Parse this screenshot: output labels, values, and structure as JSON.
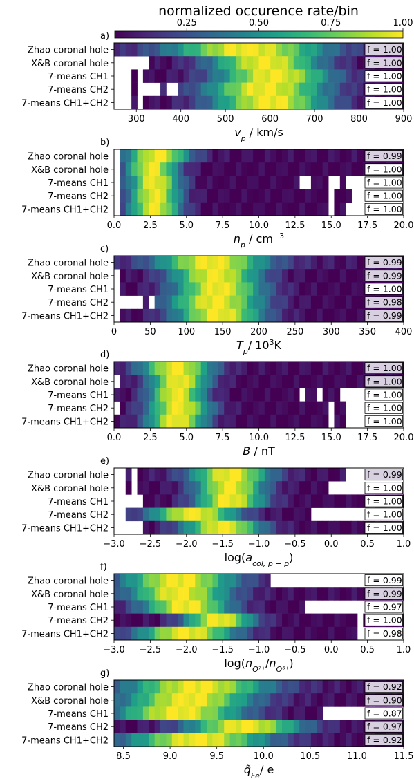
{
  "colorbar": {
    "title": "normalized occurence rate/bin",
    "ticks": [
      "0.25",
      "0.50",
      "0.75",
      "1.00"
    ],
    "colors": [
      "#440154",
      "#482878",
      "#3e4a89",
      "#31688e",
      "#26828e",
      "#1f9e89",
      "#35b779",
      "#6ece58",
      "#b5de2b",
      "#fde725"
    ]
  },
  "f_box_color": "#d8cfe0",
  "chart_data": [
    {
      "type": "heatmap",
      "panel_label": "a)",
      "xlabel_parts": [
        [
          "v",
          "italic"
        ],
        [
          "p",
          "sub"
        ],
        [
          " / km/s",
          "normal"
        ]
      ],
      "xlim": [
        250,
        900
      ],
      "xticks": [
        "300",
        "400",
        "500",
        "600",
        "700",
        "800",
        "900"
      ],
      "xtick_values": [
        300,
        400,
        500,
        600,
        700,
        800,
        900
      ],
      "rows": [
        {
          "label": "Zhao coronal hole",
          "f": "f = 1.00",
          "f_shaded": true,
          "peak": 550,
          "width": 130,
          "base": 0.02,
          "gaps": []
        },
        {
          "label": "X&B coronal hole",
          "f": "f = 1.00",
          "f_shaded": true,
          "peak": 590,
          "width": 90,
          "base": 0.0,
          "gaps": [
            [
              250,
              330
            ]
          ]
        },
        {
          "label": "7-means CH1",
          "f": "f = 1.00",
          "f_shaded": false,
          "peak": 610,
          "width": 95,
          "base": 0.0,
          "gaps": [
            [
              250,
              285
            ],
            [
              300,
              315
            ]
          ]
        },
        {
          "label": "7-means CH2",
          "f": "f = 1.00",
          "f_shaded": false,
          "peak": 590,
          "width": 100,
          "base": 0.0,
          "gaps": [
            [
              250,
              285
            ],
            [
              300,
              355
            ],
            [
              365,
              390
            ]
          ]
        },
        {
          "label": "7-means CH1+CH2",
          "f": "f = 1.00",
          "f_shaded": false,
          "peak": 600,
          "width": 95,
          "base": 0.0,
          "gaps": [
            [
              250,
              285
            ],
            [
              300,
              315
            ]
          ]
        }
      ]
    },
    {
      "type": "heatmap",
      "panel_label": "b)",
      "xlabel_parts": [
        [
          "n",
          "italic"
        ],
        [
          "p",
          "sub"
        ],
        [
          " / cm",
          "normal"
        ],
        [
          "−3",
          "sup"
        ]
      ],
      "xlim": [
        0,
        20
      ],
      "xticks": [
        "0.0",
        "2.5",
        "5.0",
        "7.5",
        "10.0",
        "12.5",
        "15.0",
        "17.5",
        "20.0"
      ],
      "xtick_values": [
        0,
        2.5,
        5,
        7.5,
        10,
        12.5,
        15,
        17.5,
        20
      ],
      "rows": [
        {
          "label": "Zhao coronal hole",
          "f": "f = 0.99",
          "f_shaded": true,
          "peak": 3.0,
          "width": 1.6,
          "base": 0.02,
          "gaps": [
            [
              0,
              0.5
            ]
          ]
        },
        {
          "label": "X&B coronal hole",
          "f": "f = 1.00",
          "f_shaded": false,
          "peak": 2.6,
          "width": 1.3,
          "base": 0.0,
          "gaps": [
            [
              0,
              0.5
            ]
          ]
        },
        {
          "label": "7-means CH1",
          "f": "f = 1.00",
          "f_shaded": false,
          "peak": 2.8,
          "width": 1.3,
          "base": 0.0,
          "gaps": [
            [
              0,
              0.5
            ],
            [
              13.0,
              13.8
            ],
            [
              14.8,
              15.6
            ],
            [
              16.0,
              20
            ]
          ]
        },
        {
          "label": "7-means CH2",
          "f": "f = 1.00",
          "f_shaded": false,
          "peak": 2.8,
          "width": 1.3,
          "base": 0.0,
          "gaps": [
            [
              0,
              0.5
            ],
            [
              14.8,
              15.3
            ],
            [
              16.3,
              20
            ]
          ]
        },
        {
          "label": "7-means CH1+CH2",
          "f": "f = 1.00",
          "f_shaded": false,
          "peak": 2.8,
          "width": 1.3,
          "base": 0.0,
          "gaps": [
            [
              0,
              0.5
            ],
            [
              14.8,
              15.3
            ],
            [
              16.0,
              20
            ]
          ]
        }
      ]
    },
    {
      "type": "heatmap",
      "panel_label": "c)",
      "xlabel_parts": [
        [
          "T",
          "italic"
        ],
        [
          "p",
          "sub"
        ],
        [
          "/ 10",
          "normal"
        ],
        [
          "3",
          "sup"
        ],
        [
          "K",
          "normal"
        ]
      ],
      "xlim": [
        0,
        400
      ],
      "xticks": [
        "0",
        "50",
        "100",
        "150",
        "200",
        "250",
        "300",
        "350",
        "400"
      ],
      "xtick_values": [
        0,
        50,
        100,
        150,
        200,
        250,
        300,
        350,
        400
      ],
      "rows": [
        {
          "label": "Zhao coronal hole",
          "f": "f = 0.99",
          "f_shaded": true,
          "peak": 135,
          "width": 55,
          "base": 0.05,
          "gaps": []
        },
        {
          "label": "X&B coronal hole",
          "f": "f = 0.99",
          "f_shaded": true,
          "peak": 140,
          "width": 45,
          "base": 0.0,
          "gaps": [
            [
              0,
              8
            ]
          ]
        },
        {
          "label": "7-means CH1",
          "f": "f = 1.00",
          "f_shaded": false,
          "peak": 145,
          "width": 45,
          "base": 0.0,
          "gaps": [
            [
              0,
              8
            ]
          ]
        },
        {
          "label": "7-means CH2",
          "f": "f = 0.98",
          "f_shaded": true,
          "peak": 140,
          "width": 48,
          "base": 0.0,
          "gaps": [
            [
              0,
              38
            ],
            [
              45,
              55
            ]
          ]
        },
        {
          "label": "7-means CH1+CH2",
          "f": "f = 0.99",
          "f_shaded": true,
          "peak": 145,
          "width": 45,
          "base": 0.0,
          "gaps": [
            [
              0,
              8
            ]
          ]
        }
      ]
    },
    {
      "type": "heatmap",
      "panel_label": "d)",
      "xlabel_parts": [
        [
          "B",
          "italic"
        ],
        [
          " / nT",
          "normal"
        ]
      ],
      "xlim": [
        0,
        20
      ],
      "xticks": [
        "0.0",
        "2.5",
        "5.0",
        "7.5",
        "10.0",
        "12.5",
        "15.0",
        "17.5",
        "20.0"
      ],
      "xtick_values": [
        0,
        2.5,
        5,
        7.5,
        10,
        12.5,
        15,
        17.5,
        20
      ],
      "rows": [
        {
          "label": "Zhao coronal hole",
          "f": "f = 1.00",
          "f_shaded": true,
          "peak": 4.3,
          "width": 1.8,
          "base": 0.02,
          "gaps": []
        },
        {
          "label": "X&B coronal hole",
          "f": "f = 1.00",
          "f_shaded": true,
          "peak": 4.5,
          "width": 1.5,
          "base": 0.0,
          "gaps": [
            [
              0,
              0.5
            ]
          ]
        },
        {
          "label": "7-means CH1",
          "f": "f = 1.00",
          "f_shaded": false,
          "peak": 4.3,
          "width": 1.4,
          "base": 0.0,
          "gaps": [
            [
              12.8,
              13.2
            ],
            [
              14.0,
              14.5
            ],
            [
              15.5,
              20
            ]
          ]
        },
        {
          "label": "7-means CH2",
          "f": "f = 1.00",
          "f_shaded": false,
          "peak": 4.5,
          "width": 1.6,
          "base": 0.0,
          "gaps": [
            [
              0,
              0.5
            ],
            [
              14.8,
              15.3
            ],
            [
              16.0,
              20
            ]
          ]
        },
        {
          "label": "7-means CH1+CH2",
          "f": "f = 1.00",
          "f_shaded": false,
          "peak": 4.3,
          "width": 1.5,
          "base": 0.0,
          "gaps": [
            [
              15.0,
              15.3
            ],
            [
              16.0,
              20
            ]
          ]
        }
      ]
    },
    {
      "type": "heatmap",
      "panel_label": "e)",
      "xlabel_parts": [
        [
          "log(",
          "normal"
        ],
        [
          "a",
          "italic"
        ],
        [
          "col, p − p",
          "sub"
        ],
        [
          ")",
          "normal"
        ]
      ],
      "xlim": [
        -3,
        1
      ],
      "xticks": [
        "−3.0",
        "−2.5",
        "−2.0",
        "−1.5",
        "−1.0",
        "−0.5",
        "0.0",
        "0.5",
        "1.0"
      ],
      "xtick_values": [
        -3,
        -2.5,
        -2,
        -1.5,
        -1,
        -0.5,
        0,
        0.5,
        1
      ],
      "rows": [
        {
          "label": "Zhao coronal hole",
          "f": "f = 0.99",
          "f_shaded": true,
          "peak": -1.4,
          "width": 0.4,
          "base": 0.03,
          "gaps": [
            [
              -3,
              -2.8
            ],
            [
              -2.75,
              -2.7
            ],
            [
              0.2,
              1
            ]
          ]
        },
        {
          "label": "X&B coronal hole",
          "f": "f = 1.00",
          "f_shaded": false,
          "peak": -1.4,
          "width": 0.35,
          "base": 0.0,
          "gaps": [
            [
              -3,
              -2.8
            ],
            [
              -2.75,
              -2.7
            ],
            [
              0.0,
              1
            ]
          ]
        },
        {
          "label": "7-means CH1",
          "f": "f = 1.00",
          "f_shaded": false,
          "peak": -1.4,
          "width": 0.35,
          "base": 0.0,
          "gaps": [
            [
              -3,
              -2.6
            ]
          ]
        },
        {
          "label": "7-means CH2",
          "f": "f = 1.00",
          "f_shaded": false,
          "peak": -1.9,
          "width": 0.45,
          "base": 0.0,
          "gaps": [
            [
              -3,
              -2.8
            ],
            [
              -0.3,
              1
            ]
          ]
        },
        {
          "label": "7-means CH1+CH2",
          "f": "f = 1.00",
          "f_shaded": false,
          "peak": -1.5,
          "width": 0.4,
          "base": 0.0,
          "gaps": [
            [
              -3,
              -2.6
            ]
          ]
        }
      ]
    },
    {
      "type": "heatmap",
      "panel_label": "f)",
      "xlabel_parts": [
        [
          "log(",
          "normal"
        ],
        [
          "n",
          "italic"
        ],
        [
          "O⁷⁺",
          "sub"
        ],
        [
          "/",
          "normal"
        ],
        [
          "n",
          "italic"
        ],
        [
          "O⁶⁺",
          "sub"
        ],
        [
          ")",
          "normal"
        ]
      ],
      "xlim": [
        -3,
        1
      ],
      "xticks": [
        "−3.0",
        "−2.5",
        "−2.0",
        "−1.5",
        "−1.0",
        "−0.5",
        "0.0",
        "0.5",
        "1.0"
      ],
      "xtick_values": [
        -3,
        -2.5,
        -2,
        -1.5,
        -1,
        -0.5,
        0,
        0.5,
        1
      ],
      "rows": [
        {
          "label": "Zhao coronal hole",
          "f": "f = 0.99",
          "f_shaded": false,
          "peak": -2.1,
          "width": 0.55,
          "base": 0.05,
          "gaps": [
            [
              -0.8,
              1
            ]
          ]
        },
        {
          "label": "X&B coronal hole",
          "f": "f = 0.99",
          "f_shaded": true,
          "peak": -2.1,
          "width": 0.5,
          "base": 0.02,
          "gaps": []
        },
        {
          "label": "7-means CH1",
          "f": "f = 0.97",
          "f_shaded": false,
          "peak": -2.0,
          "width": 0.45,
          "base": 0.0,
          "gaps": [
            [
              -0.45,
              -0.4
            ],
            [
              -0.35,
              1
            ]
          ]
        },
        {
          "label": "7-means CH2",
          "f": "f = 1.00",
          "f_shaded": false,
          "peak": -1.55,
          "width": 0.35,
          "base": 0.0,
          "gaps": [
            [
              0.35,
              0.4
            ]
          ]
        },
        {
          "label": "7-means CH1+CH2",
          "f": "f = 0.98",
          "f_shaded": false,
          "peak": -2.0,
          "width": 0.5,
          "base": 0.0,
          "gaps": [
            [
              0.35,
              1
            ]
          ]
        }
      ]
    },
    {
      "type": "heatmap",
      "panel_label": "g)",
      "xlabel_parts": [
        [
          "q̃",
          "italic"
        ],
        [
          "Fe",
          "sub"
        ],
        [
          "/ e",
          "normal"
        ]
      ],
      "xlim": [
        8.4,
        11.5
      ],
      "xticks": [
        "8.5",
        "9.0",
        "9.5",
        "10.0",
        "10.5",
        "11.0",
        "11.5"
      ],
      "xtick_values": [
        8.5,
        9,
        9.5,
        10,
        10.5,
        11,
        11.5
      ],
      "rows": [
        {
          "label": "Zhao coronal hole",
          "f": "f = 0.92",
          "f_shaded": true,
          "peak": 9.3,
          "width": 0.55,
          "base": 0.03,
          "gaps": []
        },
        {
          "label": "X&B coronal hole",
          "f": "f = 0.90",
          "f_shaded": true,
          "peak": 9.2,
          "width": 0.5,
          "base": 0.02,
          "gaps": []
        },
        {
          "label": "7-means CH1",
          "f": "f = 0.87",
          "f_shaded": false,
          "peak": 9.1,
          "width": 0.5,
          "base": 0.0,
          "gaps": [
            [
              10.55,
              10.6
            ],
            [
              10.65,
              11.1
            ],
            [
              11.15,
              11.5
            ]
          ]
        },
        {
          "label": "7-means CH2",
          "f": "f = 0.97",
          "f_shaded": true,
          "peak": 9.8,
          "width": 0.45,
          "base": 0.0,
          "gaps": []
        },
        {
          "label": "7-means CH1+CH2",
          "f": "f = 0.92",
          "f_shaded": true,
          "peak": 9.3,
          "width": 0.55,
          "base": 0.02,
          "gaps": []
        }
      ]
    }
  ]
}
